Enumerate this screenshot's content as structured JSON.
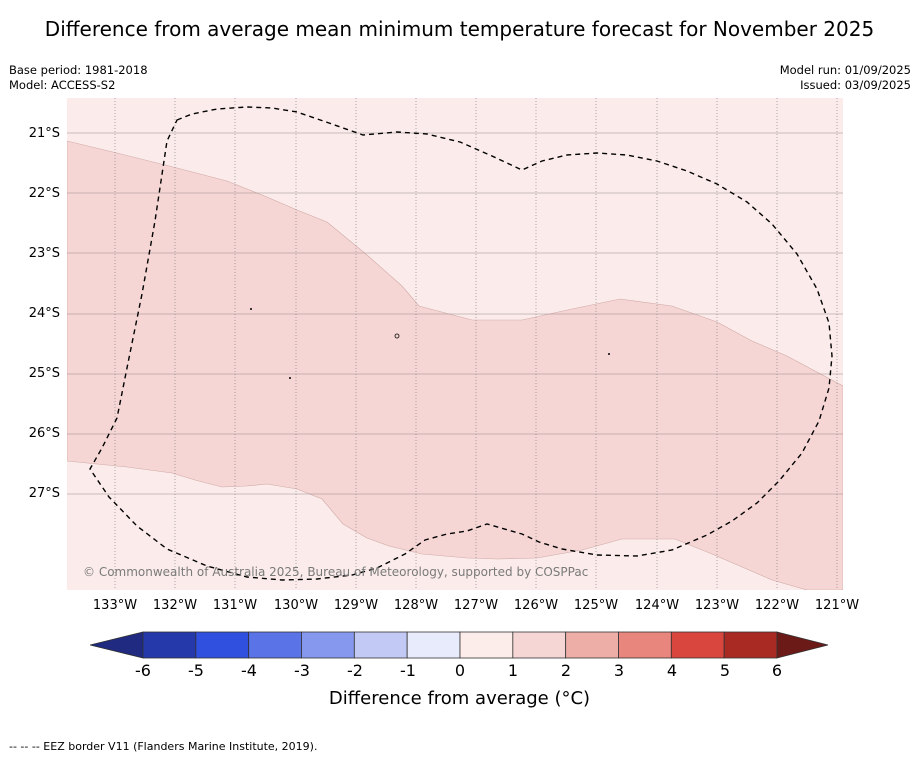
{
  "title": "Difference from average mean minimum temperature forecast for November 2025",
  "meta": {
    "base_period": "Base period: 1981-2018",
    "model": "Model: ACCESS-S2",
    "model_run": "Model run: 01/09/2025",
    "issued": "Issued: 03/09/2025"
  },
  "map": {
    "lat_labels": [
      "21°S",
      "22°S",
      "23°S",
      "24°S",
      "25°S",
      "26°S",
      "27°S"
    ],
    "lon_labels": [
      "133°W",
      "132°W",
      "131°W",
      "130°W",
      "129°W",
      "128°W",
      "127°W",
      "126°W",
      "125°W",
      "124°W",
      "123°W",
      "122°W",
      "121°W"
    ],
    "copyright": "© Commonwealth of Australia 2025, Bureau of Meteorology, supported by COSPPac",
    "colors": {
      "category_0_1": "#fbeceb",
      "category_1_2": "#f5d6d4"
    }
  },
  "colorbar": {
    "ticks": [
      "-6",
      "-5",
      "-4",
      "-3",
      "-2",
      "-1",
      "0",
      "1",
      "2",
      "3",
      "4",
      "5",
      "6"
    ],
    "label": "Difference from average (°C)",
    "colors": [
      "#1f2a80",
      "#2539aa",
      "#3050e0",
      "#5a73e6",
      "#8598ee",
      "#c2c9f5",
      "#e8ebfb",
      "#fcedeb",
      "#f5d6d4",
      "#edaea8",
      "#e8857c",
      "#d9463e",
      "#a92a23",
      "#6b1a18"
    ]
  },
  "footer": "--  --  -- EEZ border V11 (Flanders Marine Institute, 2019)."
}
